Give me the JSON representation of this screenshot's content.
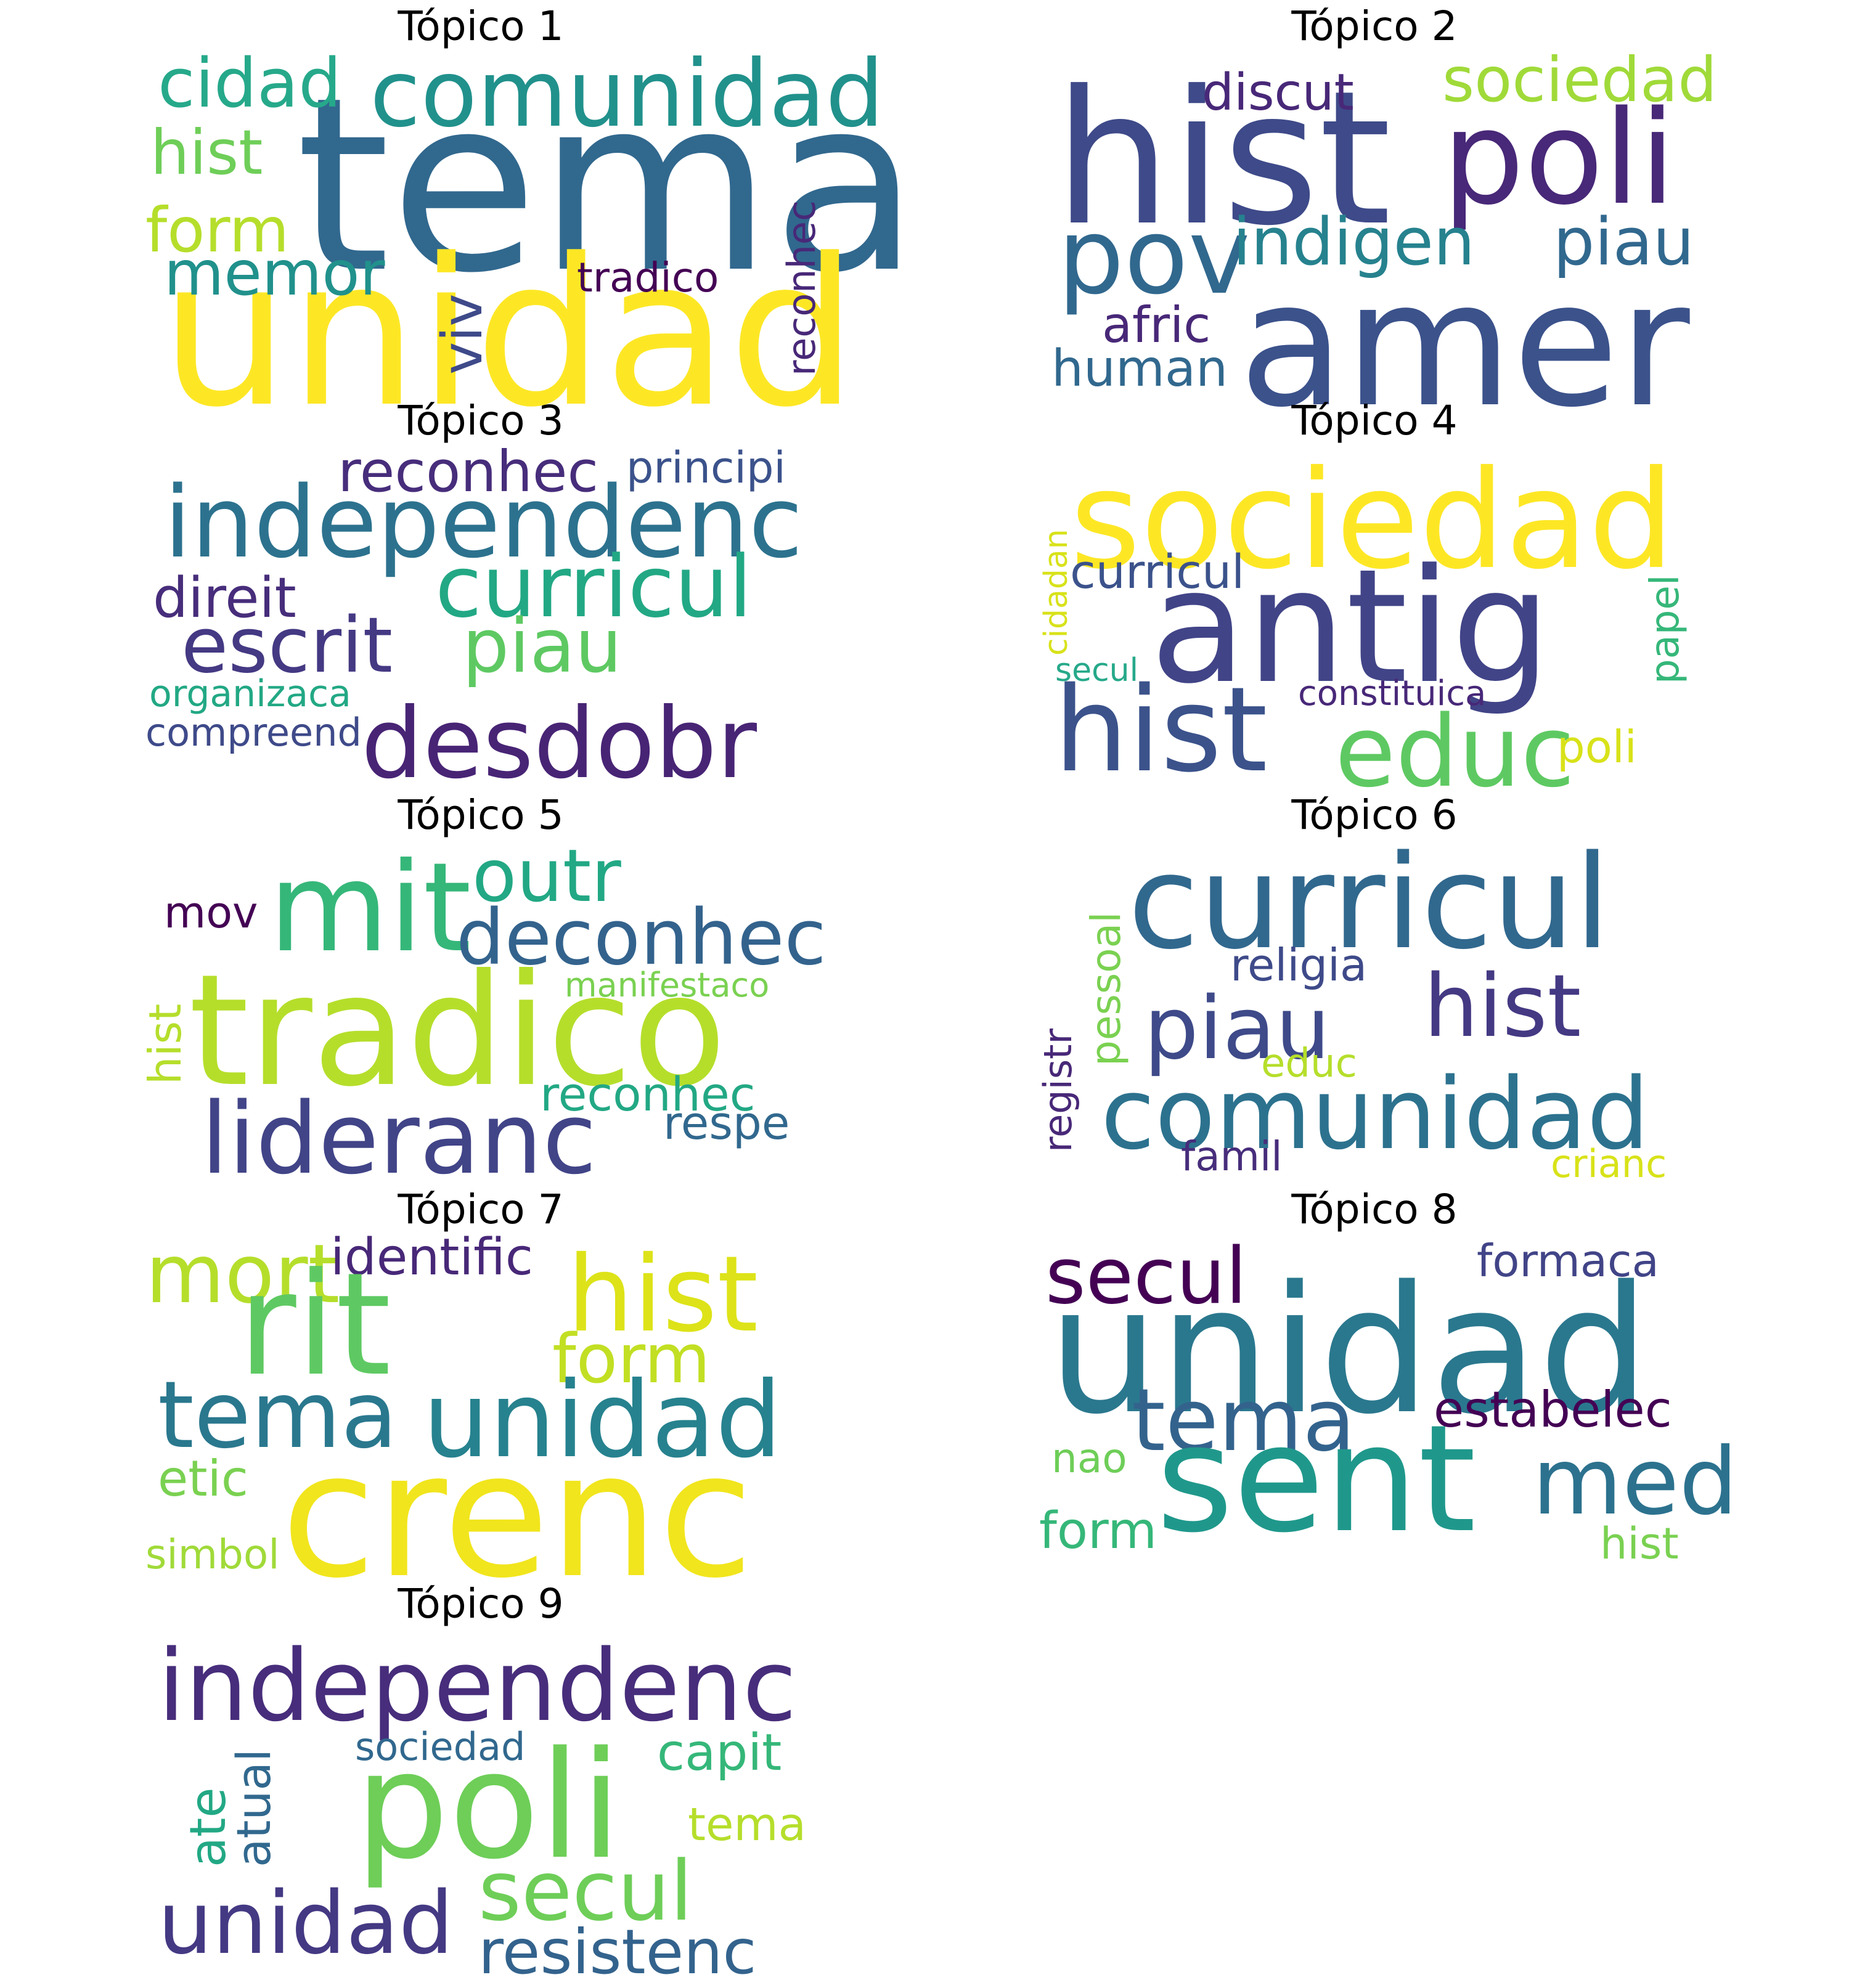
{
  "topics": [
    {
      "title": "Tópico 1",
      "words": [
        {
          "text": "tema",
          "color": "#31688e"
        },
        {
          "text": "unidad",
          "color": "#fde725"
        },
        {
          "text": "comunidad",
          "color": "#21918c"
        },
        {
          "text": "cidad",
          "color": "#26a98a"
        },
        {
          "text": "hist",
          "color": "#6ece58"
        },
        {
          "text": "form",
          "color": "#b5de2b"
        },
        {
          "text": "memor",
          "color": "#21918c"
        },
        {
          "text": "viv",
          "color": "#3e4a89"
        },
        {
          "text": "tradico",
          "color": "#440154"
        },
        {
          "text": "reconhec",
          "color": "#482878"
        }
      ]
    },
    {
      "title": "Tópico 2",
      "words": [
        {
          "text": "hist",
          "color": "#3e4a89"
        },
        {
          "text": "poli",
          "color": "#482878"
        },
        {
          "text": "amer",
          "color": "#3b528b"
        },
        {
          "text": "pov",
          "color": "#31688e"
        },
        {
          "text": "indigen",
          "color": "#26828e"
        },
        {
          "text": "piau",
          "color": "#31688e"
        },
        {
          "text": "discut",
          "color": "#482878"
        },
        {
          "text": "sociedad",
          "color": "#a0da39"
        },
        {
          "text": "afric",
          "color": "#482878"
        },
        {
          "text": "human",
          "color": "#31688e"
        }
      ]
    },
    {
      "title": "Tópico 3",
      "words": [
        {
          "text": "independenc",
          "color": "#2c728e"
        },
        {
          "text": "reconhec",
          "color": "#472d7b"
        },
        {
          "text": "principi",
          "color": "#3b528b"
        },
        {
          "text": "curricul",
          "color": "#22a884"
        },
        {
          "text": "direit",
          "color": "#472d7b"
        },
        {
          "text": "escrit",
          "color": "#443983"
        },
        {
          "text": "piau",
          "color": "#5ec962"
        },
        {
          "text": "organizaca",
          "color": "#22a884"
        },
        {
          "text": "compreend",
          "color": "#3e4a89"
        },
        {
          "text": "desdobr",
          "color": "#482475"
        }
      ]
    },
    {
      "title": "Tópico 4",
      "words": [
        {
          "text": "sociedad",
          "color": "#fde725"
        },
        {
          "text": "antig",
          "color": "#414487"
        },
        {
          "text": "curricul",
          "color": "#3b528b"
        },
        {
          "text": "cidadan",
          "color": "#d8e219"
        },
        {
          "text": "secul",
          "color": "#26a98a"
        },
        {
          "text": "papel",
          "color": "#35b779"
        },
        {
          "text": "hist",
          "color": "#3b528b"
        },
        {
          "text": "constituica",
          "color": "#482878"
        },
        {
          "text": "educ",
          "color": "#5ec962"
        },
        {
          "text": "poli",
          "color": "#d8e219"
        }
      ]
    },
    {
      "title": "Tópico 5",
      "words": [
        {
          "text": "mit",
          "color": "#35b779"
        },
        {
          "text": "outr",
          "color": "#22a884"
        },
        {
          "text": "mov",
          "color": "#440154"
        },
        {
          "text": "deconhec",
          "color": "#33638d"
        },
        {
          "text": "manifestaco",
          "color": "#7ad151"
        },
        {
          "text": "hist",
          "color": "#b5de2b"
        },
        {
          "text": "tradico",
          "color": "#b5de2b"
        },
        {
          "text": "reconhec",
          "color": "#22a884"
        },
        {
          "text": "lideranc",
          "color": "#414487"
        },
        {
          "text": "respe",
          "color": "#31688e"
        }
      ]
    },
    {
      "title": "Tópico 6",
      "words": [
        {
          "text": "curricul",
          "color": "#31688e"
        },
        {
          "text": "pessoal",
          "color": "#7ad151"
        },
        {
          "text": "religia",
          "color": "#3e4a89"
        },
        {
          "text": "registr",
          "color": "#482878"
        },
        {
          "text": "piau",
          "color": "#3e4a89"
        },
        {
          "text": "hist",
          "color": "#443983"
        },
        {
          "text": "educ",
          "color": "#b5de2b"
        },
        {
          "text": "comunidad",
          "color": "#2c728e"
        },
        {
          "text": "famil",
          "color": "#472d7b"
        },
        {
          "text": "crianc",
          "color": "#d8e219"
        }
      ]
    },
    {
      "title": "Tópico 7",
      "words": [
        {
          "text": "mort",
          "color": "#b5de2b"
        },
        {
          "text": "identific",
          "color": "#482878"
        },
        {
          "text": "hist",
          "color": "#dde318"
        },
        {
          "text": "rit",
          "color": "#5ec962"
        },
        {
          "text": "form",
          "color": "#c2df23"
        },
        {
          "text": "tema",
          "color": "#2a788e"
        },
        {
          "text": "unidad",
          "color": "#26828e"
        },
        {
          "text": "etic",
          "color": "#7ad151"
        },
        {
          "text": "crenc",
          "color": "#f1e51d"
        },
        {
          "text": "simbol",
          "color": "#a0da39"
        }
      ]
    },
    {
      "title": "Tópico 8",
      "words": [
        {
          "text": "secul",
          "color": "#440154"
        },
        {
          "text": "formaca",
          "color": "#414487"
        },
        {
          "text": "unidad",
          "color": "#2a788e"
        },
        {
          "text": "tema",
          "color": "#33638d"
        },
        {
          "text": "estabelec",
          "color": "#440154"
        },
        {
          "text": "nao",
          "color": "#6ece58"
        },
        {
          "text": "sent",
          "color": "#1f988b"
        },
        {
          "text": "med",
          "color": "#2c728e"
        },
        {
          "text": "form",
          "color": "#35b779"
        },
        {
          "text": "hist",
          "color": "#7ad151"
        }
      ]
    },
    {
      "title": "Tópico 9",
      "words": [
        {
          "text": "independenc",
          "color": "#472d7b"
        },
        {
          "text": "atual",
          "color": "#31688e"
        },
        {
          "text": "ate",
          "color": "#22a884"
        },
        {
          "text": "sociedad",
          "color": "#31688e"
        },
        {
          "text": "poli",
          "color": "#6ece58"
        },
        {
          "text": "capit",
          "color": "#35b779"
        },
        {
          "text": "tema",
          "color": "#b5de2b"
        },
        {
          "text": "secul",
          "color": "#6ece58"
        },
        {
          "text": "unidad",
          "color": "#443983"
        },
        {
          "text": "resistenc",
          "color": "#33638d"
        }
      ]
    }
  ]
}
